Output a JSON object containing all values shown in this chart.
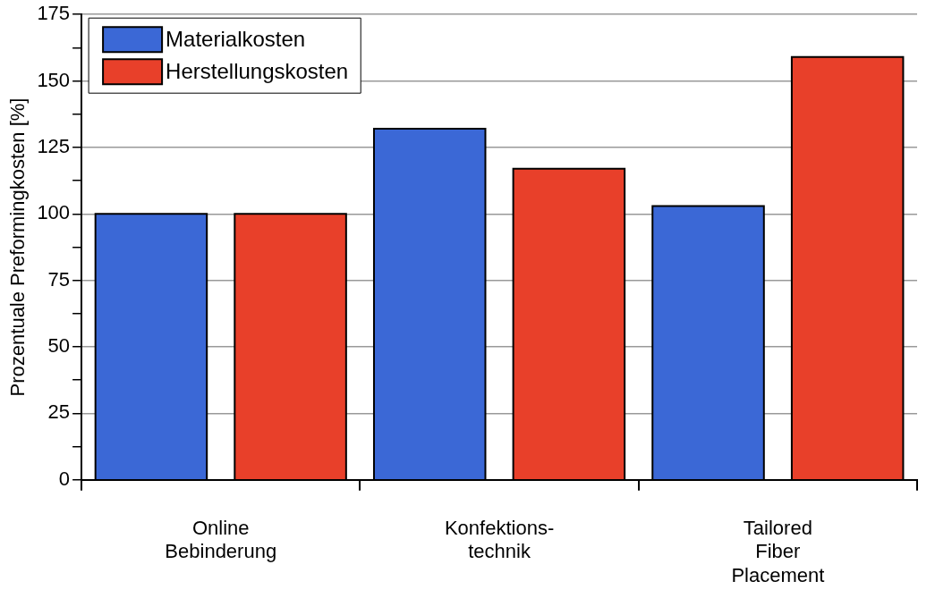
{
  "chart_data": {
    "type": "bar",
    "ylabel": "Prozentuale Preformingkosten [%]",
    "categories": [
      "Online\nBebinderung",
      "Konfektions-\ntechnik",
      "Tailored\nFiber\nPlacement"
    ],
    "series": [
      {
        "name": "Materialkosten",
        "color": "#3b68d6",
        "values": [
          100,
          132,
          103
        ]
      },
      {
        "name": "Herstellungskosten",
        "color": "#e8402a",
        "values": [
          100,
          117,
          159
        ]
      }
    ],
    "ylim": [
      0,
      175
    ],
    "yticks": [
      0,
      {
        "value": 12.5,
        "label": null
      },
      25,
      {
        "value": 37.5,
        "label": null
      },
      50,
      {
        "value": 62.5,
        "label": null
      },
      75,
      {
        "value": 87.5,
        "label": null
      },
      100,
      {
        "value": 112.5,
        "label": null
      },
      125,
      {
        "value": 137.5,
        "label": null
      },
      150,
      {
        "value": 162.5,
        "label": null
      },
      175
    ],
    "grid": "y",
    "legend": "top left"
  }
}
